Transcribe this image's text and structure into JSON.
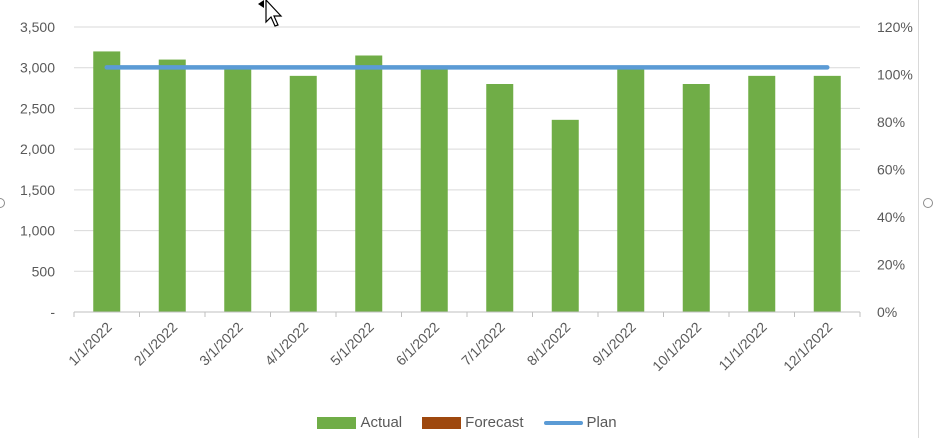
{
  "chart_data": {
    "type": "bar",
    "categories": [
      "1/1/2022",
      "2/1/2022",
      "3/1/2022",
      "4/1/2022",
      "5/1/2022",
      "6/1/2022",
      "7/1/2022",
      "8/1/2022",
      "9/1/2022",
      "10/1/2022",
      "11/1/2022",
      "12/1/2022"
    ],
    "series": [
      {
        "name": "Actual",
        "type": "bar",
        "axis": "left",
        "color": "#70ad47",
        "values": [
          3200,
          3100,
          3000,
          2900,
          3150,
          3000,
          2800,
          2360,
          3000,
          2800,
          2900,
          2900
        ]
      },
      {
        "name": "Forecast",
        "type": "bar",
        "axis": "left",
        "color": "#9e480e",
        "values": [
          0,
          0,
          0,
          0,
          0,
          0,
          0,
          0,
          0,
          0,
          0,
          0
        ]
      },
      {
        "name": "Plan",
        "type": "line",
        "axis": "right",
        "color": "#5b9bd5",
        "values": [
          1.03,
          1.03,
          1.03,
          1.03,
          1.03,
          1.03,
          1.03,
          1.03,
          1.03,
          1.03,
          1.03,
          1.03
        ]
      }
    ],
    "ylim": [
      0,
      3500
    ],
    "y2lim": [
      0,
      1.2
    ],
    "yticks": [
      {
        "value": 0,
        "label": "-"
      },
      {
        "value": 500,
        "label": "500"
      },
      {
        "value": 1000,
        "label": "1,000"
      },
      {
        "value": 1500,
        "label": "1,500"
      },
      {
        "value": 2000,
        "label": "2,000"
      },
      {
        "value": 2500,
        "label": "2,500"
      },
      {
        "value": 3000,
        "label": "3,000"
      },
      {
        "value": 3500,
        "label": "3,500"
      }
    ],
    "y2ticks": [
      {
        "value": 0,
        "label": "0%"
      },
      {
        "value": 0.2,
        "label": "20%"
      },
      {
        "value": 0.4,
        "label": "40%"
      },
      {
        "value": 0.6,
        "label": "60%"
      },
      {
        "value": 0.8,
        "label": "80%"
      },
      {
        "value": 1.0,
        "label": "100%"
      },
      {
        "value": 1.2,
        "label": "120%"
      }
    ],
    "grid": true,
    "legend_position": "bottom"
  },
  "legend": [
    {
      "label": "Actual",
      "color": "#70ad47",
      "kind": "box"
    },
    {
      "label": "Forecast",
      "color": "#9e480e",
      "kind": "box"
    },
    {
      "label": "Plan",
      "color": "#5b9bd5",
      "kind": "line"
    }
  ],
  "icons": {
    "cursor": "mouse-pointer-icon"
  }
}
